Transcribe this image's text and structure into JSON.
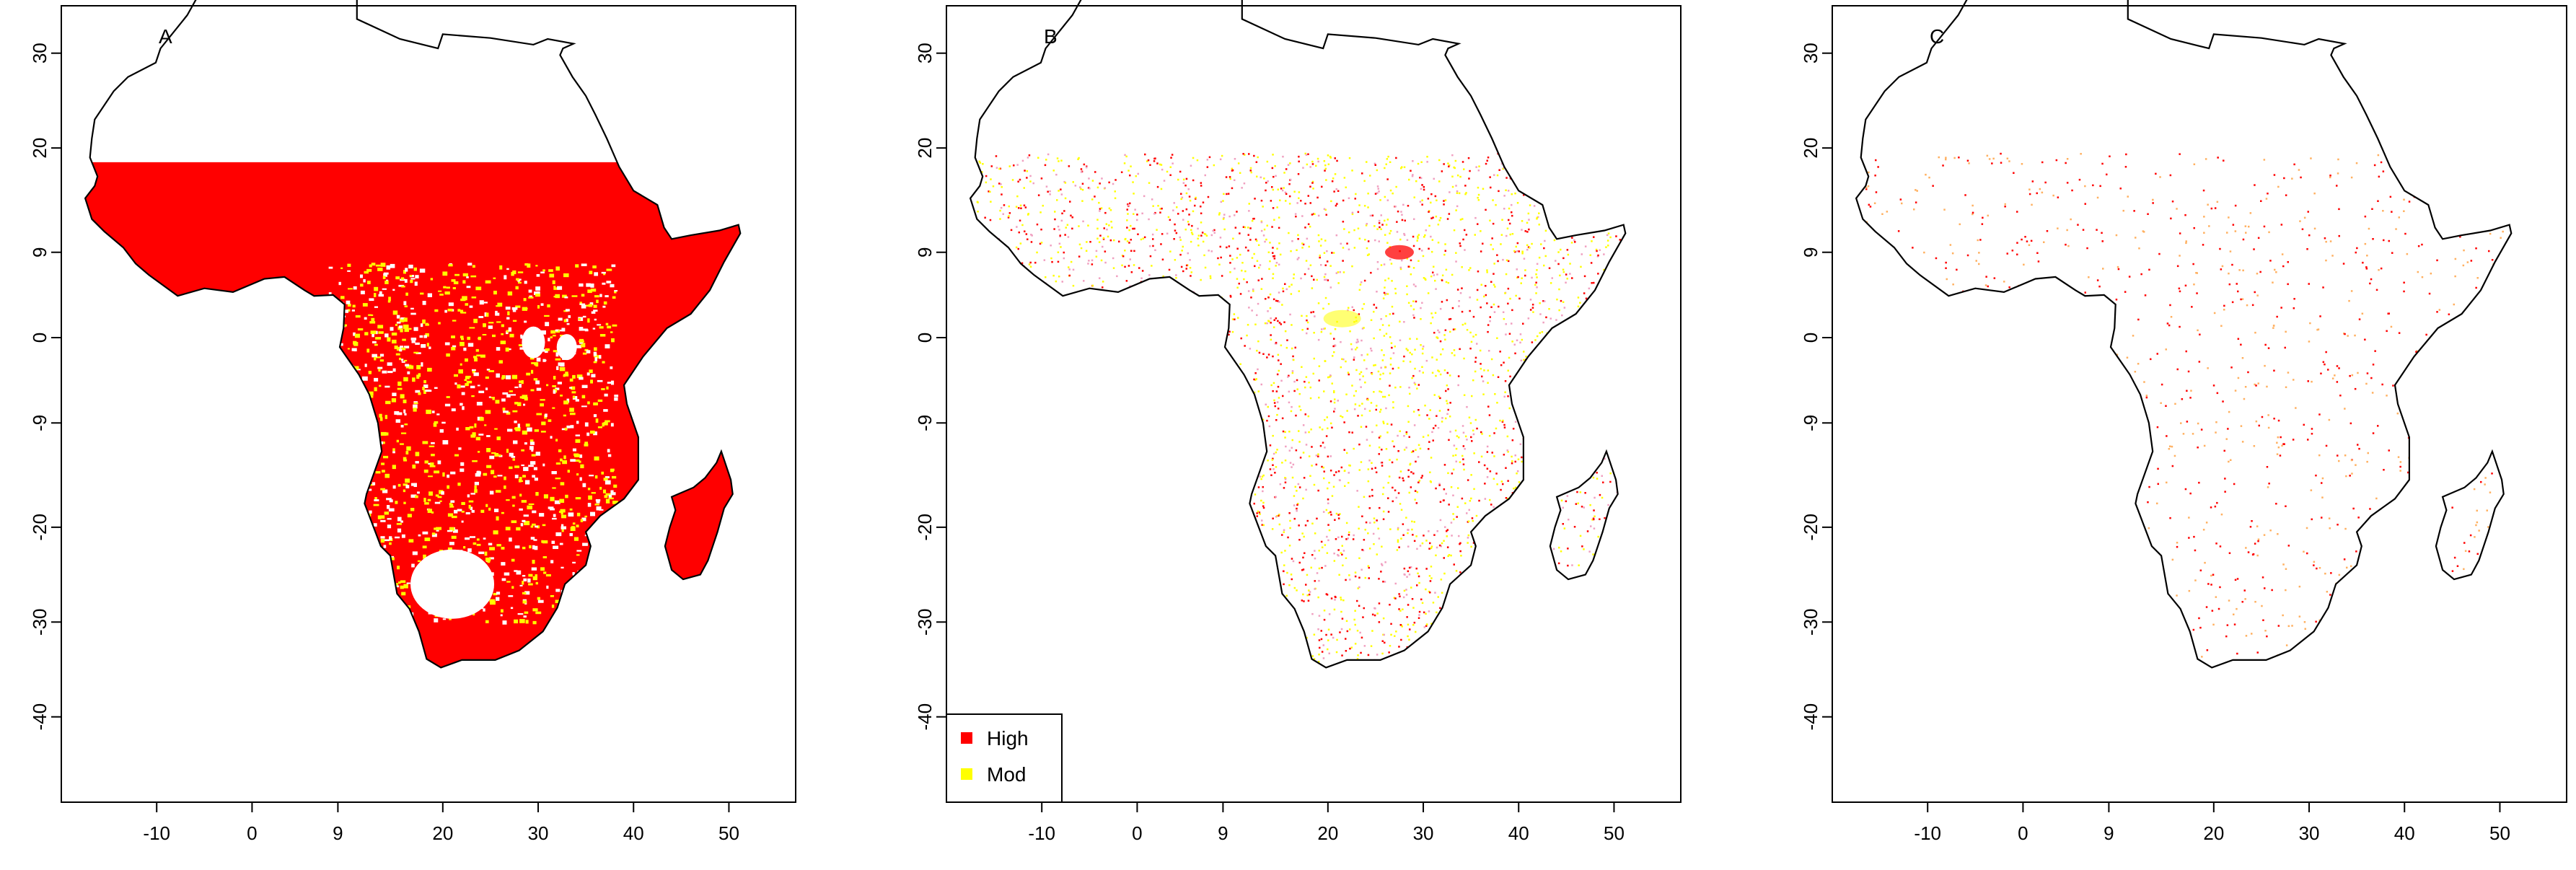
{
  "panels": [
    {
      "label": "A",
      "x_ticks": [
        "-10",
        "0",
        "9",
        "20",
        "30",
        "40",
        "50"
      ],
      "y_ticks": [
        "30",
        "20",
        "9",
        "0",
        "-9",
        "-20",
        "-30",
        "-40"
      ],
      "density": "dense"
    },
    {
      "label": "B",
      "x_ticks": [
        "-10",
        "0",
        "9",
        "20",
        "30",
        "40",
        "50"
      ],
      "y_ticks": [
        "30",
        "20",
        "9",
        "0",
        "-9",
        "-20",
        "-30",
        "-40"
      ],
      "density": "scattered",
      "legend": {
        "items": [
          {
            "label": "High",
            "color": "#ff0000"
          },
          {
            "label": "Mod",
            "color": "#ffff00"
          }
        ]
      }
    },
    {
      "label": "C",
      "x_ticks": [
        "-10",
        "0",
        "9",
        "20",
        "30",
        "40",
        "50"
      ],
      "y_ticks": [
        "30",
        "20",
        "9",
        "0",
        "-9",
        "-20",
        "-30",
        "-40"
      ],
      "density": "sparse"
    }
  ],
  "colors": {
    "high": "#ff0000",
    "mod": "#ffff00",
    "coast": "#000000"
  },
  "chart_data": {
    "type": "heatmap",
    "x_tick_values": [
      -10,
      0,
      9,
      20,
      30,
      40,
      50
    ],
    "y_tick_values": [
      30,
      20,
      9,
      0,
      -9,
      -20,
      -30,
      -40
    ],
    "xlim": [
      -20,
      57
    ],
    "ylim": [
      -49,
      35
    ],
    "categories": [
      "High",
      "Mod"
    ]
  }
}
